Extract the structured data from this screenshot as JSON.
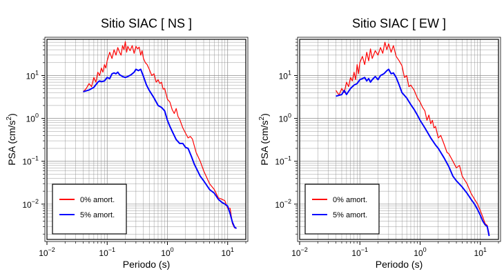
{
  "chart_data": [
    {
      "type": "line",
      "title": "Sitio SIAC [ NS ]",
      "xlabel": "Periodo (s)",
      "ylabel_base": "PSA (cm/s",
      "ylabel_exp": "2",
      "ylabel_close": ")",
      "x_scale": "log",
      "y_scale": "log",
      "xlim": [
        0.01,
        20
      ],
      "ylim": [
        0.0015,
        70
      ],
      "grid": true,
      "legend_position": "bottom-left",
      "x_tick_labels": [
        {
          "base": "10",
          "exp": "−2"
        },
        {
          "base": "10",
          "exp": "−1"
        },
        {
          "base": "10",
          "exp": "0"
        },
        {
          "base": "10",
          "exp": "1"
        }
      ],
      "y_tick_labels": [
        {
          "base": "10",
          "exp": "−2"
        },
        {
          "base": "10",
          "exp": "−1"
        },
        {
          "base": "10",
          "exp": "0"
        },
        {
          "base": "10",
          "exp": "1"
        }
      ],
      "series": [
        {
          "name": "0% amort.",
          "color": "#ff0000",
          "x": [
            0.04,
            0.045,
            0.05,
            0.055,
            0.06,
            0.065,
            0.07,
            0.075,
            0.08,
            0.085,
            0.09,
            0.095,
            0.1,
            0.11,
            0.12,
            0.13,
            0.14,
            0.15,
            0.16,
            0.17,
            0.18,
            0.19,
            0.2,
            0.21,
            0.22,
            0.24,
            0.26,
            0.28,
            0.3,
            0.32,
            0.34,
            0.36,
            0.38,
            0.4,
            0.43,
            0.46,
            0.5,
            0.55,
            0.6,
            0.65,
            0.7,
            0.75,
            0.8,
            0.85,
            0.9,
            1.0,
            1.1,
            1.2,
            1.3,
            1.4,
            1.5,
            1.6,
            1.8,
            2.0,
            2.2,
            2.4,
            2.6,
            3.0,
            3.5,
            4.0,
            5.0,
            6.0,
            7.0,
            8.0,
            9.0,
            10.0,
            11.0,
            12.0,
            13.0,
            14.0
          ],
          "y": [
            4.2,
            5.0,
            6.5,
            5.5,
            9.0,
            7.0,
            12.0,
            10.0,
            15.0,
            12.0,
            18.0,
            15.0,
            22.0,
            35.0,
            25.0,
            40.0,
            30.0,
            45.0,
            35.0,
            30.0,
            50.0,
            40.0,
            62.0,
            35.0,
            48.0,
            38.0,
            50.0,
            33.0,
            48.0,
            42.0,
            46.0,
            30.0,
            38.0,
            25.0,
            20.0,
            18.0,
            14.0,
            10.0,
            11.0,
            7.0,
            8.0,
            6.5,
            7.0,
            4.8,
            5.0,
            2.8,
            2.4,
            1.6,
            1.3,
            1.7,
            1.1,
            0.95,
            0.6,
            0.45,
            0.35,
            0.38,
            0.33,
            0.16,
            0.1,
            0.06,
            0.03,
            0.022,
            0.014,
            0.013,
            0.012,
            0.008,
            0.008,
            0.0035,
            0.0028,
            0.0027
          ]
        },
        {
          "name": "5% amort.",
          "color": "#0000ff",
          "x": [
            0.04,
            0.05,
            0.06,
            0.07,
            0.075,
            0.08,
            0.09,
            0.1,
            0.11,
            0.12,
            0.13,
            0.14,
            0.15,
            0.16,
            0.18,
            0.2,
            0.22,
            0.25,
            0.28,
            0.3,
            0.33,
            0.36,
            0.4,
            0.45,
            0.5,
            0.6,
            0.7,
            0.8,
            0.9,
            1.0,
            1.1,
            1.2,
            1.4,
            1.6,
            1.8,
            2.0,
            2.2,
            2.5,
            2.8,
            3.0,
            3.5,
            4.0,
            5.0,
            6.0,
            7.0,
            8.0,
            9.0,
            10.0,
            11.0,
            12.0,
            13.0,
            14.0
          ],
          "y": [
            4.2,
            4.6,
            5.3,
            7.0,
            7.5,
            7.2,
            7.5,
            9.0,
            8.5,
            11.0,
            11.5,
            11.0,
            12.0,
            10.5,
            9.5,
            9.0,
            9.5,
            10.5,
            12.0,
            14.0,
            13.0,
            14.0,
            9.5,
            6.0,
            4.5,
            3.0,
            2.0,
            1.8,
            1.5,
            0.9,
            0.65,
            0.5,
            0.32,
            0.26,
            0.26,
            0.21,
            0.2,
            0.13,
            0.085,
            0.07,
            0.045,
            0.035,
            0.022,
            0.018,
            0.013,
            0.011,
            0.01,
            0.009,
            0.006,
            0.0038,
            0.0029,
            0.0027
          ]
        }
      ]
    },
    {
      "type": "line",
      "title": "Sitio SIAC [ EW ]",
      "xlabel": "Periodo (s)",
      "ylabel_base": "PSA (cm/s",
      "ylabel_exp": "2",
      "ylabel_close": ")",
      "x_scale": "log",
      "y_scale": "log",
      "xlim": [
        0.01,
        20
      ],
      "ylim": [
        0.0015,
        70
      ],
      "grid": true,
      "legend_position": "bottom-left",
      "x_tick_labels": [
        {
          "base": "10",
          "exp": "−2"
        },
        {
          "base": "10",
          "exp": "−1"
        },
        {
          "base": "10",
          "exp": "0"
        },
        {
          "base": "10",
          "exp": "1"
        }
      ],
      "y_tick_labels": [
        {
          "base": "10",
          "exp": "−2"
        },
        {
          "base": "10",
          "exp": "−1"
        },
        {
          "base": "10",
          "exp": "0"
        },
        {
          "base": "10",
          "exp": "1"
        }
      ],
      "series": [
        {
          "name": "0% amort.",
          "color": "#ff0000",
          "x": [
            0.04,
            0.045,
            0.05,
            0.055,
            0.06,
            0.065,
            0.07,
            0.075,
            0.08,
            0.085,
            0.09,
            0.095,
            0.1,
            0.11,
            0.12,
            0.13,
            0.14,
            0.15,
            0.16,
            0.18,
            0.2,
            0.22,
            0.24,
            0.26,
            0.28,
            0.3,
            0.33,
            0.36,
            0.4,
            0.45,
            0.5,
            0.55,
            0.6,
            0.65,
            0.7,
            0.8,
            0.9,
            1.0,
            1.1,
            1.2,
            1.3,
            1.4,
            1.5,
            1.6,
            1.7,
            1.8,
            2.0,
            2.2,
            2.5,
            2.8,
            3.0,
            3.5,
            4.0,
            4.5,
            5.0,
            6.0,
            7.0,
            8.0,
            9.0,
            10.0,
            11.0,
            12.0,
            13.0,
            14.0
          ],
          "y": [
            4.5,
            3.5,
            5.0,
            4.0,
            7.0,
            5.5,
            9.0,
            7.5,
            12.0,
            8.0,
            18.0,
            11.0,
            20.0,
            28.0,
            18.0,
            35.0,
            22.0,
            42.0,
            25.0,
            38.0,
            30.0,
            45.0,
            33.0,
            60.0,
            40.0,
            55.0,
            35.0,
            50.0,
            28.0,
            22.0,
            17.0,
            9.0,
            10.0,
            5.5,
            6.0,
            4.5,
            3.0,
            2.4,
            1.8,
            1.5,
            0.9,
            1.2,
            0.75,
            0.9,
            0.6,
            0.65,
            0.35,
            0.4,
            0.25,
            0.16,
            0.15,
            0.1,
            0.07,
            0.08,
            0.045,
            0.03,
            0.018,
            0.013,
            0.01,
            0.007,
            0.005,
            0.0035,
            0.0032,
            0.002
          ]
        },
        {
          "name": "5% amort.",
          "color": "#0000ff",
          "x": [
            0.04,
            0.05,
            0.055,
            0.06,
            0.07,
            0.08,
            0.09,
            0.1,
            0.11,
            0.12,
            0.13,
            0.14,
            0.15,
            0.16,
            0.18,
            0.2,
            0.22,
            0.25,
            0.28,
            0.3,
            0.33,
            0.36,
            0.4,
            0.45,
            0.5,
            0.6,
            0.7,
            0.8,
            0.9,
            1.0,
            1.2,
            1.5,
            1.8,
            2.0,
            2.5,
            3.0,
            3.5,
            4.0,
            5.0,
            6.0,
            7.0,
            8.0,
            9.0,
            10.0,
            11.0,
            12.0,
            13.0,
            14.0
          ],
          "y": [
            3.3,
            3.6,
            4.5,
            3.6,
            5.0,
            6.0,
            6.5,
            8.0,
            8.5,
            9.0,
            7.5,
            8.5,
            7.0,
            8.0,
            9.5,
            8.0,
            10.0,
            11.0,
            13.0,
            14.0,
            11.0,
            11.5,
            9.0,
            6.0,
            4.0,
            3.0,
            2.1,
            1.6,
            1.2,
            0.9,
            0.6,
            0.35,
            0.24,
            0.2,
            0.12,
            0.075,
            0.045,
            0.035,
            0.025,
            0.018,
            0.013,
            0.01,
            0.0075,
            0.0055,
            0.004,
            0.0033,
            0.003,
            0.0018
          ]
        }
      ]
    }
  ]
}
